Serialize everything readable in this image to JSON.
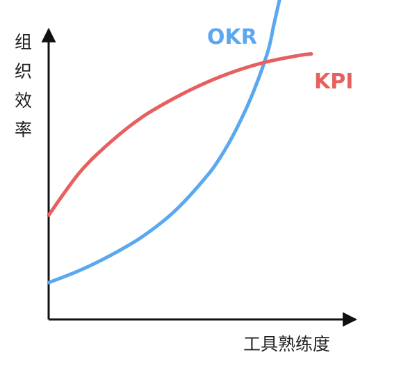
{
  "chart_data": {
    "type": "line",
    "title": "",
    "ylabel": "组织效率",
    "xlabel": "工具熟练度",
    "xlim": [
      0,
      100
    ],
    "ylim": [
      0,
      100
    ],
    "grid": false,
    "ticks": false,
    "series": [
      {
        "name": "OKR",
        "color": "#5aa8ef",
        "x": [
          0,
          10,
          20,
          30,
          40,
          50,
          55,
          60,
          65,
          70,
          72,
          74
        ],
        "y": [
          12,
          16,
          21,
          27,
          35,
          46,
          53,
          62,
          73,
          87,
          96,
          105
        ]
      },
      {
        "name": "KPI",
        "color": "#e66060",
        "x": [
          0,
          10,
          20,
          30,
          40,
          50,
          60,
          70,
          80,
          84
        ],
        "y": [
          34,
          48,
          58,
          66,
          72,
          77,
          81,
          84,
          86,
          86.5
        ]
      }
    ]
  },
  "colors": {
    "axis": "#111111",
    "text": "#222222"
  }
}
